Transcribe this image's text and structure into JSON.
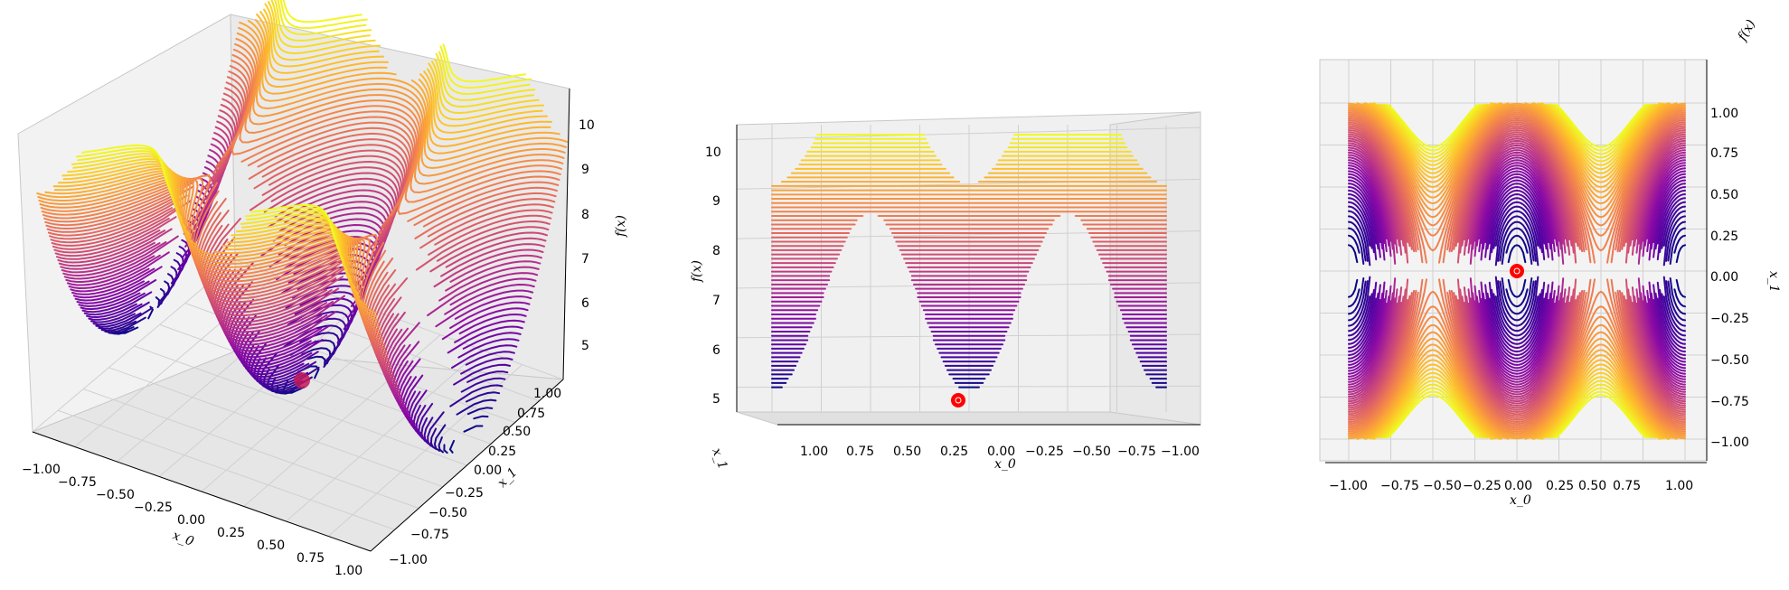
{
  "chart_data": [
    {
      "type": "contour3d",
      "view": "perspective",
      "xlabel": "x_0",
      "ylabel": "x_1",
      "zlabel": "f(x)",
      "xlim": [
        -1.0,
        1.0
      ],
      "ylim": [
        -1.0,
        1.0
      ],
      "zlim": [
        4.5,
        10.3
      ],
      "x_ticks": [
        "−1.00",
        "−0.75",
        "−0.50",
        "−0.25",
        "0.00",
        "0.25",
        "0.50",
        "0.75",
        "1.00"
      ],
      "y_ticks": [
        "−1.00",
        "−0.75",
        "−0.50",
        "−0.25",
        "0.00",
        "0.25",
        "0.50",
        "0.75",
        "1.00"
      ],
      "z_ticks": [
        "5",
        "6",
        "7",
        "8",
        "9",
        "10"
      ],
      "minimum_marker": {
        "x": 0.0,
        "y": 0.0,
        "z": 4.9,
        "color": "#ff0000"
      },
      "colormap": "plasma",
      "grid": true
    },
    {
      "type": "contour3d",
      "view": "side",
      "xlabel": "x_0",
      "ylabel": "f(x)",
      "depth_label": "x_1",
      "xlim": [
        -1.0,
        1.0
      ],
      "zlim": [
        4.5,
        10.3
      ],
      "x_ticks": [
        "1.00",
        "0.75",
        "0.50",
        "0.25",
        "0.00",
        "−0.25",
        "−0.50",
        "−0.75",
        "−1.00"
      ],
      "z_ticks": [
        "5",
        "6",
        "7",
        "8",
        "9",
        "10"
      ],
      "minimum_marker": {
        "x": 0.0,
        "z": 4.9,
        "color": "#ff0000"
      },
      "colormap": "plasma",
      "grid": true
    },
    {
      "type": "contour3d",
      "view": "top",
      "xlabel": "x_0",
      "ylabel": "x_1",
      "zlabel": "f(x)",
      "xlim": [
        -1.0,
        1.0
      ],
      "ylim": [
        -1.0,
        1.0
      ],
      "x_ticks": [
        "−1.00",
        "−0.75",
        "−0.50",
        "−0.25",
        "0.00",
        "0.25",
        "0.50",
        "0.75",
        "1.00"
      ],
      "y_ticks": [
        "1.00",
        "0.75",
        "0.50",
        "0.25",
        "0.00",
        "−0.25",
        "−0.50",
        "−0.75",
        "−1.00"
      ],
      "minimum_marker": {
        "x": 0.0,
        "y": 0.0,
        "color": "#ff0000"
      },
      "colormap": "plasma",
      "grid": true
    }
  ]
}
